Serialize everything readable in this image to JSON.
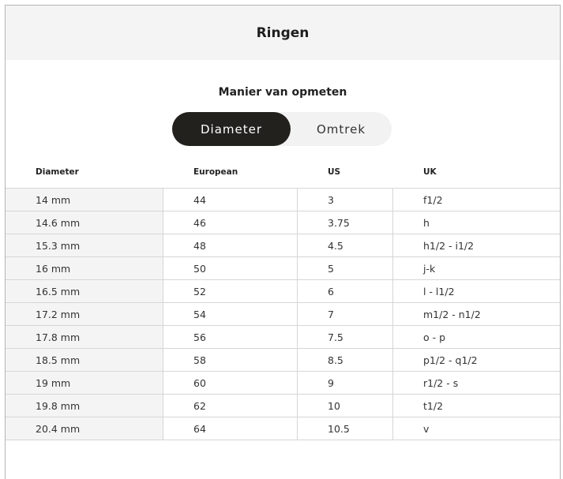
{
  "title": "Ringen",
  "measure_label": "Manier van opmeten",
  "toggle": {
    "options": [
      "Diameter",
      "Omtrek"
    ],
    "selected": "Diameter"
  },
  "columns": [
    "Diameter",
    "European",
    "US",
    "UK"
  ],
  "rows": [
    [
      "14 mm",
      "44",
      "3",
      "f1/2"
    ],
    [
      "14.6 mm",
      "46",
      "3.75",
      "h"
    ],
    [
      "15.3 mm",
      "48",
      "4.5",
      "h1/2 - i1/2"
    ],
    [
      "16 mm",
      "50",
      "5",
      "j-k"
    ],
    [
      "16.5 mm",
      "52",
      "6",
      "l - l1/2"
    ],
    [
      "17.2 mm",
      "54",
      "7",
      "m1/2 - n1/2"
    ],
    [
      "17.8 mm",
      "56",
      "7.5",
      "o - p"
    ],
    [
      "18.5 mm",
      "58",
      "8.5",
      "p1/2 - q1/2"
    ],
    [
      "19 mm",
      "60",
      "9",
      "r1/2 - s"
    ],
    [
      "19.8 mm",
      "62",
      "10",
      "t1/2"
    ],
    [
      "20.4 mm",
      "64",
      "10.5",
      "v"
    ]
  ]
}
